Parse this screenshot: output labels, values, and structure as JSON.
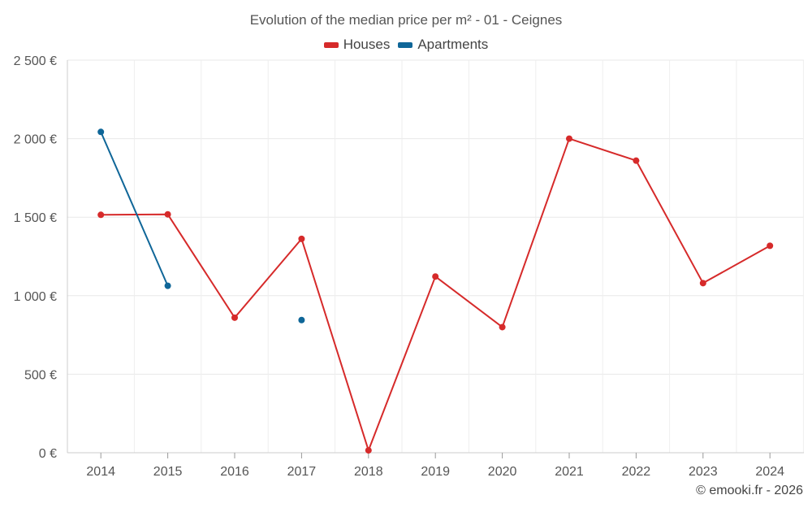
{
  "chart_data": {
    "type": "line",
    "title": "Evolution of the median price per m² - 01 - Ceignes",
    "xlabel": "",
    "ylabel": "",
    "categories": [
      "2014",
      "2015",
      "2016",
      "2017",
      "2018",
      "2019",
      "2020",
      "2021",
      "2022",
      "2023",
      "2024"
    ],
    "ylim": [
      0,
      2500
    ],
    "yticks": [
      0,
      500,
      1000,
      1500,
      2000,
      2500
    ],
    "ytick_labels": [
      "0 €",
      "500 €",
      "1 000 €",
      "1 500 €",
      "2 000 €",
      "2 500 €"
    ],
    "grid": true,
    "legend_position": "top-center",
    "series": [
      {
        "name": "Houses",
        "color": "#d62a2a",
        "values": [
          1515,
          1518,
          860,
          1362,
          15,
          1122,
          800,
          2000,
          1860,
          1080,
          1318
        ]
      },
      {
        "name": "Apartments",
        "color": "#0f6698",
        "values": [
          2043,
          1063,
          null,
          845,
          null,
          null,
          null,
          null,
          null,
          null,
          null
        ]
      }
    ]
  },
  "credit": "© emooki.fr - 2026"
}
